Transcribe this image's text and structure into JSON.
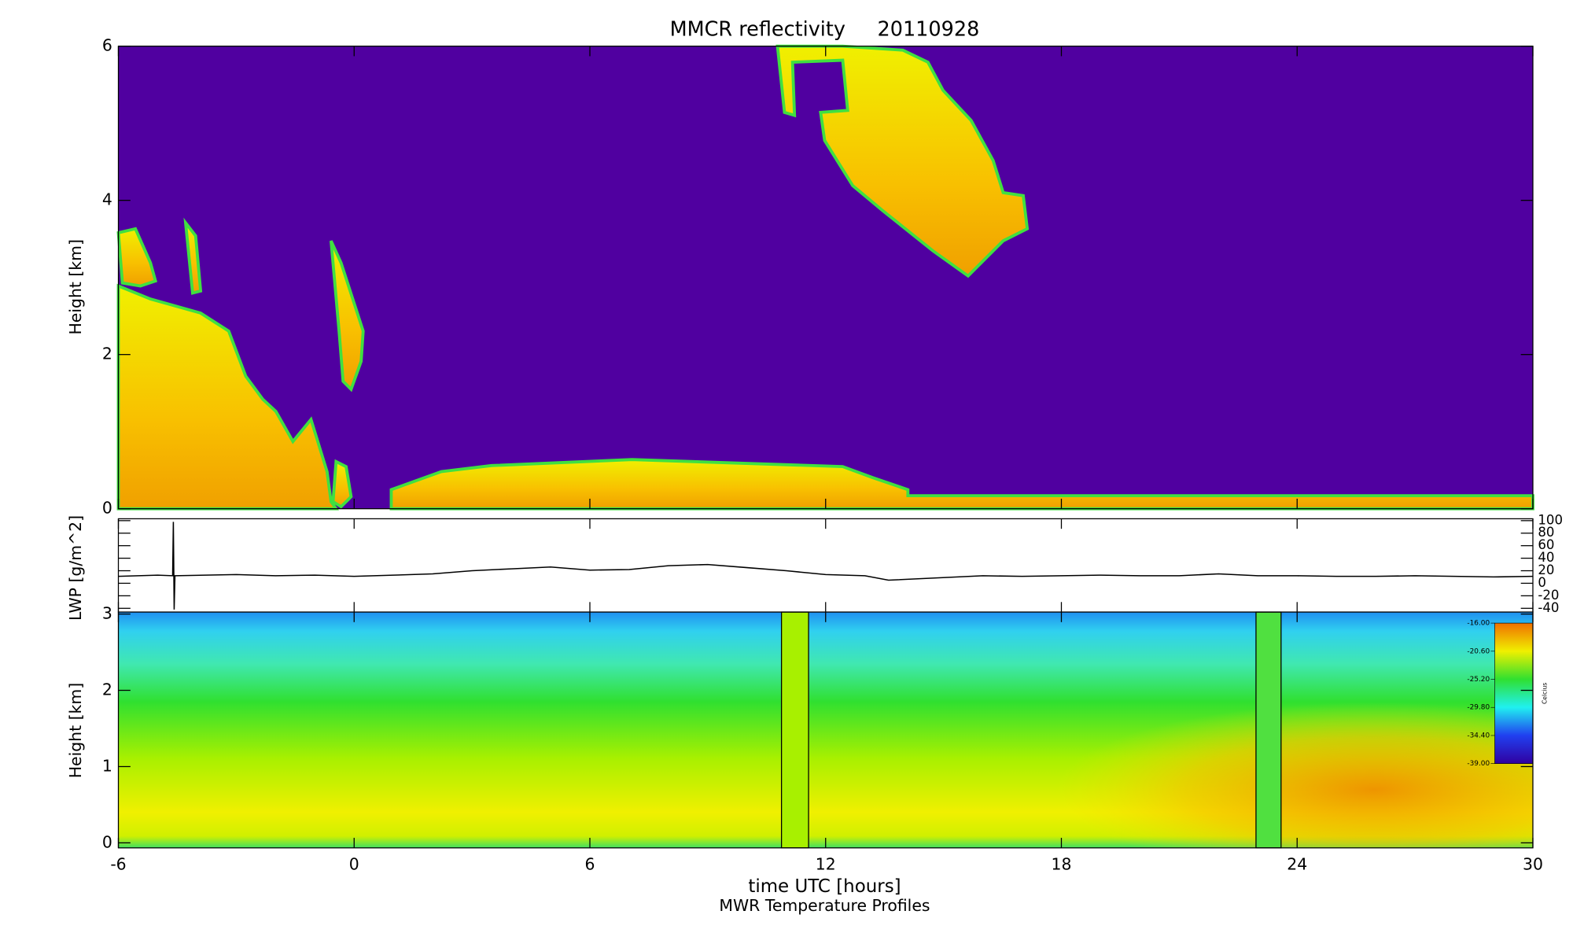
{
  "chart_data": [
    {
      "type": "heatmap",
      "title": "MMCR reflectivity     20110928",
      "ylabel": "Height [km]",
      "xlim": [
        -6,
        30
      ],
      "xticks": [
        -6,
        0,
        6,
        12,
        18,
        24,
        30
      ],
      "ylim": [
        0,
        6
      ],
      "yticks": [
        0,
        2,
        4,
        6
      ]
    },
    {
      "type": "line",
      "ylabel": "LWP [g/m^2]",
      "color": "#000000",
      "xlim": [
        -6,
        30
      ],
      "xticks": [
        -6,
        0,
        6,
        12,
        18,
        24,
        30
      ],
      "ylim": [
        -46,
        103
      ],
      "yticks": [
        100,
        80,
        60,
        40,
        20,
        0,
        -20,
        -40
      ],
      "x": [
        -6,
        -5,
        -4.62,
        -4.6,
        -4.58,
        -4.56,
        -3,
        -2,
        -1,
        0,
        1,
        2,
        3,
        4,
        5,
        6,
        7,
        8,
        9,
        10,
        11,
        12,
        13,
        13.6,
        16,
        17,
        18,
        19,
        20,
        21,
        22,
        23,
        24,
        25,
        26,
        27,
        28,
        29,
        30
      ],
      "values": [
        11,
        13,
        12,
        98,
        -42,
        12,
        14,
        12,
        13,
        11,
        13,
        15,
        20,
        23,
        26,
        21,
        22,
        28,
        30,
        25,
        20,
        14,
        12,
        5,
        12,
        11,
        12,
        13,
        12,
        12,
        15,
        12,
        12,
        11,
        11,
        12,
        11,
        10,
        11
      ]
    },
    {
      "type": "heatmap",
      "ylabel": "Height [km]",
      "xlabel": "time UTC [hours]",
      "subtitle": "MWR Temperature Profiles",
      "xlim": [
        -6,
        30
      ],
      "xticks": [
        -6,
        0,
        6,
        12,
        18,
        24,
        30
      ],
      "ylim": [
        -0.066,
        3.026
      ],
      "yticks": [
        0,
        1,
        2,
        3
      ],
      "colorbar_label": "Celcius",
      "clim": [
        -39,
        -16
      ],
      "colorbar_ticks": [
        {
          "value": -16,
          "label": "-16.00"
        },
        {
          "value": -20.6,
          "label": "-20.60"
        },
        {
          "value": -25.2,
          "label": "-25.20"
        },
        {
          "value": -29.8,
          "label": "-29.80"
        },
        {
          "value": -34.4,
          "label": "-34.40"
        },
        {
          "value": -39,
          "label": "-39.00"
        }
      ]
    }
  ]
}
